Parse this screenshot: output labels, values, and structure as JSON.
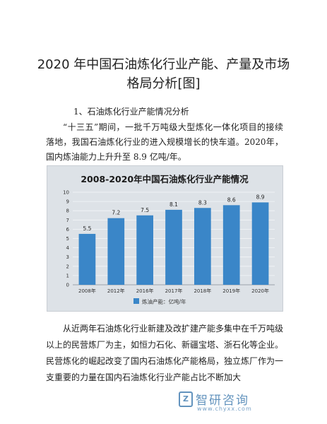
{
  "document": {
    "title_line1": "2020 年中国石油炼化行业产能、产量及市场",
    "title_line2": "格局分析[图]",
    "section_heading": "1、石油炼化行业产能情况分析",
    "paragraph1": "“十三五”期间，一批千万吨级大型炼化一体化项目的接续落地，我国石油炼化行业的进入规模增长的快车道。2020年，国内炼油能力上升升至 8.9 亿吨/年。",
    "paragraph2": "从近两年石油炼化行业新建及改扩建产能多集中在千万吨级以上的民营炼厂为主，如恒力石化、新疆宝塔、浙石化等企业。民营炼化的崛起改变了国内石油炼化产能格局，独立炼厂作为一支重要的力量在国内石油炼化行业产能占比不断加大"
  },
  "watermark": {
    "logo_glyph": "Z",
    "name": "智研咨询",
    "url": "www.chyxx.com"
  },
  "chart_data": {
    "type": "bar",
    "title": "2008-2020年中国石油炼化行业产能情况",
    "categories": [
      "2008年",
      "2012年",
      "2016年",
      "2017年",
      "2018年",
      "2019年",
      "2020年"
    ],
    "values": [
      5.5,
      7.2,
      7.5,
      8.1,
      8.3,
      8.6,
      8.9
    ],
    "series": [
      {
        "name": "炼油产能：亿吨/年",
        "values": [
          5.5,
          7.2,
          7.5,
          8.1,
          8.3,
          8.6,
          8.9
        ]
      }
    ],
    "yticks": [
      "0",
      "1",
      "2",
      "3",
      "4",
      "5",
      "6",
      "7",
      "8",
      "9",
      "10"
    ],
    "ylim": [
      0,
      10
    ],
    "grid": true,
    "legend_position": "bottom",
    "bar_color": "#3a86c8"
  }
}
